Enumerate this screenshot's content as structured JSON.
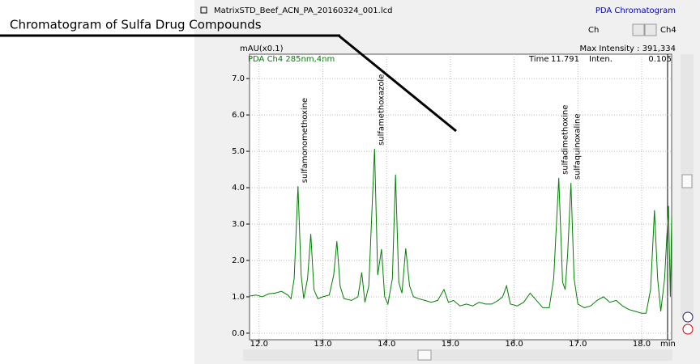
{
  "window": {
    "file_name": "MatrixSTD_Beef_ACN_PA_20160324_001.lcd",
    "view_name": "PDA Chromatogram",
    "channel_label": "Ch",
    "channel_value": "Ch4",
    "max_intensity": "Max Intensity : 391,334",
    "time_label": "Time",
    "time_value": "11.791",
    "inten_label": "Inten.",
    "inten_value": "0.105"
  },
  "callout": "Chromatogram of Sulfa Drug Compounds",
  "chart_data": {
    "type": "line",
    "title": "PDA Ch4 285nm,4nm",
    "y_axis_label": "mAU(x0.1)",
    "x_axis_label": "min",
    "xlim": [
      11.85,
      18.47
    ],
    "ylim": [
      -0.18,
      7.67
    ],
    "xticks": [
      {
        "value": 12,
        "label": "12.0"
      },
      {
        "value": 13,
        "label": "13.0"
      },
      {
        "value": 14,
        "label": "14.0"
      },
      {
        "value": 15,
        "label": "15.0"
      },
      {
        "value": 16,
        "label": "16.0"
      },
      {
        "value": 17,
        "label": "17.0"
      },
      {
        "value": 18,
        "label": "18.0"
      }
    ],
    "yticks": [
      {
        "value": 0,
        "label": "0.0"
      },
      {
        "value": 1,
        "label": "1.0"
      },
      {
        "value": 2,
        "label": "2.0"
      },
      {
        "value": 3,
        "label": "3.0"
      },
      {
        "value": 4,
        "label": "4.0"
      },
      {
        "value": 5,
        "label": "5.0"
      },
      {
        "value": 6,
        "label": "6.0"
      },
      {
        "value": 7,
        "label": "7.0"
      }
    ],
    "grid": true,
    "x": [
      11.85,
      11.95,
      12.05,
      12.15,
      12.25,
      12.35,
      12.45,
      12.5,
      12.55,
      12.61,
      12.66,
      12.7,
      12.76,
      12.81,
      12.86,
      12.92,
      13.0,
      13.1,
      13.17,
      13.22,
      13.27,
      13.33,
      13.45,
      13.55,
      13.61,
      13.66,
      13.72,
      13.81,
      13.86,
      13.92,
      13.97,
      14.02,
      14.09,
      14.14,
      14.19,
      14.24,
      14.3,
      14.36,
      14.42,
      14.5,
      14.6,
      14.7,
      14.8,
      14.9,
      14.97,
      15.05,
      15.15,
      15.25,
      15.35,
      15.45,
      15.55,
      15.65,
      15.75,
      15.82,
      15.88,
      15.94,
      16.05,
      16.15,
      16.25,
      16.35,
      16.45,
      16.55,
      16.62,
      16.7,
      16.76,
      16.8,
      16.84,
      16.89,
      16.94,
      17.0,
      17.1,
      17.2,
      17.3,
      17.4,
      17.5,
      17.6,
      17.7,
      17.8,
      17.9,
      18.0,
      18.07,
      18.14,
      18.2,
      18.25,
      18.3,
      18.36,
      18.42,
      18.45,
      18.47
    ],
    "series": [
      {
        "name": "PDA Ch4 285nm,4nm",
        "color": "#008000",
        "values": [
          1.02,
          1.05,
          1.0,
          1.08,
          1.1,
          1.15,
          1.05,
          0.95,
          1.5,
          4.04,
          1.6,
          0.95,
          1.5,
          2.73,
          1.2,
          0.95,
          1.0,
          1.05,
          1.6,
          2.53,
          1.3,
          0.95,
          0.9,
          1.0,
          1.67,
          0.85,
          1.3,
          5.07,
          1.6,
          2.31,
          1.0,
          0.8,
          1.5,
          4.36,
          1.4,
          1.1,
          2.33,
          1.3,
          1.0,
          0.95,
          0.9,
          0.85,
          0.9,
          1.2,
          0.85,
          0.9,
          0.75,
          0.8,
          0.75,
          0.85,
          0.8,
          0.8,
          0.9,
          1.0,
          1.3,
          0.8,
          0.75,
          0.85,
          1.1,
          0.9,
          0.7,
          0.7,
          1.5,
          4.27,
          1.4,
          1.2,
          2.2,
          4.13,
          1.5,
          0.8,
          0.7,
          0.75,
          0.9,
          1.0,
          0.85,
          0.9,
          0.75,
          0.65,
          0.6,
          0.55,
          0.55,
          1.2,
          3.38,
          1.5,
          0.6,
          1.5,
          3.5,
          1.0,
          3.2
        ]
      }
    ],
    "annotations": [
      {
        "text": "sulfamonomethoxine",
        "x": 12.61
      },
      {
        "text": "sulfamethoxazole",
        "x": 13.81
      },
      {
        "text": "sulfadimethoxine",
        "x": 16.7
      },
      {
        "text": "sulfaquinoxaline",
        "x": 16.89
      }
    ]
  }
}
